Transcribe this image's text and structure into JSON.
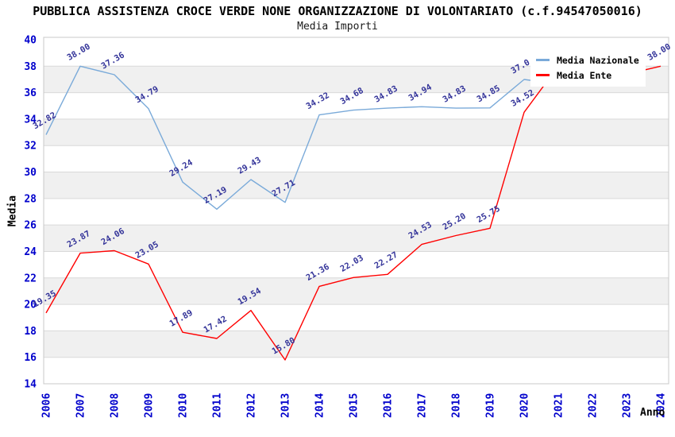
{
  "chart_data": {
    "type": "line",
    "title": "PUBBLICA ASSISTENZA CROCE VERDE NONE ORGANIZZAZIONE DI VOLONTARIATO (c.f.94547050016)",
    "subtitle": "Media Importi",
    "xlabel": "Anno",
    "ylabel": "Media",
    "x_ticks": [
      "2006",
      "2007",
      "2008",
      "2009",
      "2010",
      "2011",
      "2012",
      "2013",
      "2014",
      "2015",
      "2016",
      "2017",
      "2018",
      "2019",
      "2020",
      "2021",
      "2022",
      "2023",
      "2024"
    ],
    "ylim": [
      14,
      40
    ],
    "ytick_step": 2,
    "grid": "horizontal gridlines every 2 units, alternating white/gray background bands",
    "legend": {
      "position": "top-right",
      "entries": [
        "Media Nazionale",
        "Media Ente"
      ]
    },
    "series": [
      {
        "name": "Media Nazionale",
        "color": "#7aaad9",
        "points": [
          {
            "x": 2006,
            "v": 32.82,
            "label": "32.82"
          },
          {
            "x": 2007,
            "v": 38.0,
            "label": "38.00"
          },
          {
            "x": 2008,
            "v": 37.36,
            "label": "37.36"
          },
          {
            "x": 2009,
            "v": 34.79,
            "label": "34.79"
          },
          {
            "x": 2010,
            "v": 29.24,
            "label": "29.24"
          },
          {
            "x": 2011,
            "v": 27.19,
            "label": "27.19"
          },
          {
            "x": 2012,
            "v": 29.43,
            "label": "29.43"
          },
          {
            "x": 2013,
            "v": 27.71,
            "label": "27.71"
          },
          {
            "x": 2014,
            "v": 34.32,
            "label": "34.32"
          },
          {
            "x": 2015,
            "v": 34.68,
            "label": "34.68"
          },
          {
            "x": 2016,
            "v": 34.83,
            "label": "34.83"
          },
          {
            "x": 2017,
            "v": 34.94,
            "label": "34.94"
          },
          {
            "x": 2018,
            "v": 34.83,
            "label": "34.83"
          },
          {
            "x": 2019,
            "v": 34.85,
            "label": "34.85"
          },
          {
            "x": 2020,
            "v": 37.0,
            "label": "37.0",
            "label_partially_hidden_by_legend": true
          },
          {
            "x": 2021,
            "v": 36.65,
            "label": "",
            "hidden_behind_legend": true,
            "estimated": true
          },
          {
            "x": 2022,
            "v": 37.0,
            "label": "",
            "hidden_behind_legend": true,
            "estimated": true
          }
        ]
      },
      {
        "name": "Media Ente",
        "color": "#ff0000",
        "points": [
          {
            "x": 2006,
            "v": 19.35,
            "label": "19.35"
          },
          {
            "x": 2007,
            "v": 23.87,
            "label": "23.87"
          },
          {
            "x": 2008,
            "v": 24.06,
            "label": "24.06"
          },
          {
            "x": 2009,
            "v": 23.05,
            "label": "23.05"
          },
          {
            "x": 2010,
            "v": 17.89,
            "label": "17.89"
          },
          {
            "x": 2011,
            "v": 17.42,
            "label": "17.42"
          },
          {
            "x": 2012,
            "v": 19.54,
            "label": "19.54"
          },
          {
            "x": 2013,
            "v": 15.8,
            "label": "15.80"
          },
          {
            "x": 2014,
            "v": 21.36,
            "label": "21.36"
          },
          {
            "x": 2015,
            "v": 22.03,
            "label": "22.03"
          },
          {
            "x": 2016,
            "v": 22.27,
            "label": "22.27"
          },
          {
            "x": 2017,
            "v": 24.53,
            "label": "24.53"
          },
          {
            "x": 2018,
            "v": 25.2,
            "label": "25.20"
          },
          {
            "x": 2019,
            "v": 25.75,
            "label": "25.75"
          },
          {
            "x": 2020,
            "v": 34.52,
            "label": "34.52"
          },
          {
            "x": 2021,
            "v": 38.0,
            "label": "",
            "hidden_behind_legend": true,
            "estimated": true
          },
          {
            "x": 2022,
            "v": 37.6,
            "label": "",
            "hidden_behind_legend": true,
            "estimated": true
          },
          {
            "x": 2023,
            "v": 37.4,
            "label": "",
            "hidden_behind_legend": true,
            "estimated": true
          },
          {
            "x": 2024,
            "v": 38.0,
            "label": "38.00"
          }
        ]
      }
    ]
  },
  "colors": {
    "national_line": "#7aaad9",
    "ente_line": "#ff0000",
    "tick_label": "#0000cc",
    "point_label": "#333399",
    "band_gray": "#f0f0f0",
    "grid_line": "#d9d9d9",
    "plot_border": "#c8c8c8",
    "title_text": "#000000",
    "legend_background": "#ffffff"
  }
}
